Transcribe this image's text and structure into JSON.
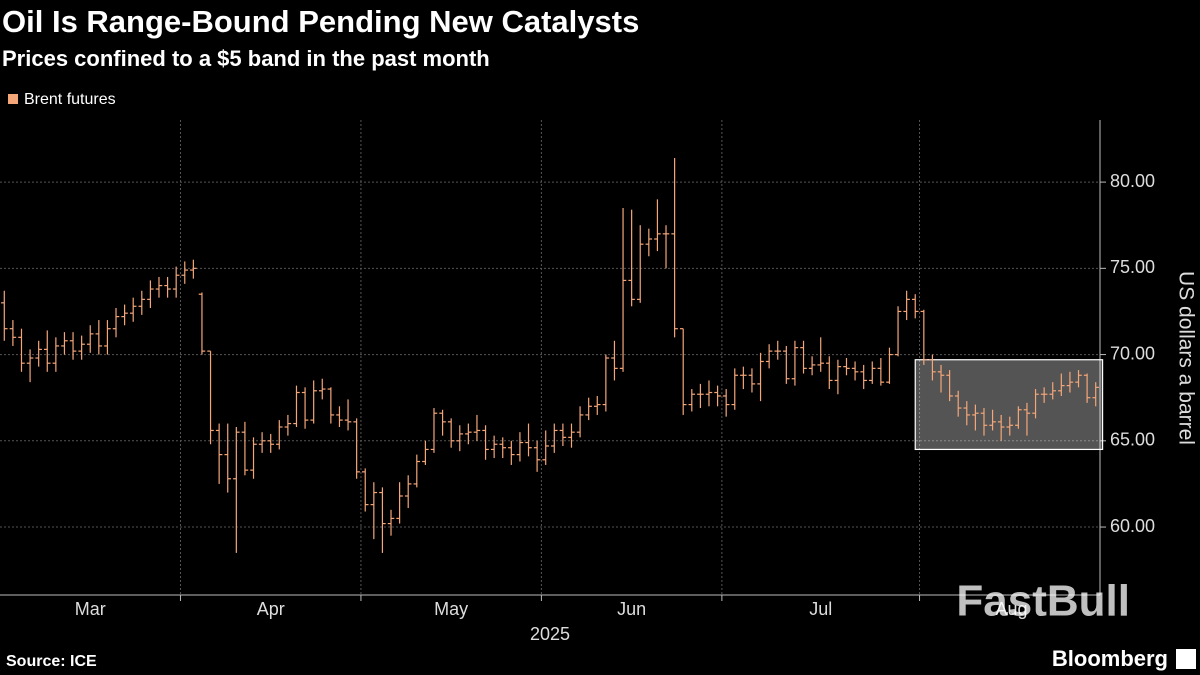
{
  "chart_data": {
    "type": "ohlc",
    "title": "Oil Is Range-Bound Pending New Catalysts",
    "subtitle": "Prices confined to a $5 band in the past month",
    "y_axis_label": "US dollars a barrel",
    "x_axis_label": "2025",
    "source": "Source: ICE",
    "brand": "Bloomberg",
    "watermark": "FastBull",
    "legend_position": "top-left",
    "grid": true,
    "ylim": [
      56.06,
      83.6
    ],
    "yticks": [
      {
        "value": 60,
        "label": "60.00"
      },
      {
        "value": 65,
        "label": "65.00"
      },
      {
        "value": 70,
        "label": "70.00"
      },
      {
        "value": 75,
        "label": "75.00"
      },
      {
        "value": 80,
        "label": "80.00"
      }
    ],
    "highlight": {
      "xlim": [
        107,
        127
      ],
      "ylim": [
        64.5,
        69.7
      ]
    },
    "categories": [
      "Mar",
      null,
      null,
      null,
      null,
      null,
      null,
      null,
      null,
      null,
      null,
      null,
      null,
      null,
      null,
      null,
      null,
      null,
      null,
      null,
      null,
      "Apr",
      null,
      null,
      null,
      null,
      null,
      null,
      null,
      null,
      null,
      null,
      null,
      null,
      null,
      null,
      null,
      null,
      null,
      null,
      null,
      null,
      "May",
      null,
      null,
      null,
      null,
      null,
      null,
      null,
      null,
      null,
      null,
      null,
      null,
      null,
      null,
      null,
      null,
      null,
      null,
      null,
      null,
      "Jun",
      null,
      null,
      null,
      null,
      null,
      null,
      null,
      null,
      null,
      null,
      null,
      null,
      null,
      null,
      null,
      null,
      null,
      null,
      null,
      null,
      "Jul",
      null,
      null,
      null,
      null,
      null,
      null,
      null,
      null,
      null,
      null,
      null,
      null,
      null,
      null,
      null,
      null,
      null,
      null,
      null,
      null,
      null,
      null,
      "Aug",
      null,
      null,
      null,
      null,
      null,
      null,
      null,
      null,
      null,
      null,
      null,
      null,
      null,
      null,
      null,
      null,
      null,
      null,
      null,
      null
    ],
    "series": [
      {
        "name": "Brent futures",
        "color": "#f4a679",
        "open": [
          73.0,
          71.5,
          71.0,
          69.5,
          69.8,
          70.3,
          69.5,
          70.5,
          70.8,
          70.2,
          70.6,
          71.2,
          70.5,
          71.5,
          72.2,
          72.4,
          72.8,
          73.2,
          73.8,
          74.0,
          73.8,
          74.6,
          74.9,
          73.5,
          70.2,
          65.6,
          64.2,
          62.8,
          65.5,
          63.3,
          64.8,
          65.0,
          64.8,
          65.8,
          66.0,
          67.8,
          66.2,
          67.9,
          68.0,
          66.5,
          66.2,
          66.1,
          63.2,
          61.3,
          62.0,
          60.2,
          60.5,
          61.8,
          62.5,
          63.8,
          64.5,
          66.6,
          66.1,
          65.0,
          65.4,
          65.5,
          65.6,
          64.5,
          64.8,
          64.6,
          64.2,
          64.9,
          64.6,
          63.9,
          64.7,
          65.6,
          65.2,
          65.5,
          66.5,
          67.0,
          67.1,
          69.8,
          69.2,
          74.3,
          73.2,
          76.4,
          76.7,
          77.0,
          77.0,
          71.5,
          67.1,
          67.7,
          67.7,
          67.8,
          67.6,
          67.1,
          68.8,
          68.8,
          68.3,
          69.6,
          70.2,
          70.2,
          68.6,
          70.4,
          69.2,
          69.4,
          69.5,
          68.5,
          69.3,
          69.2,
          69.0,
          68.5,
          69.2,
          68.4,
          70.0,
          72.5,
          73.2,
          72.5,
          69.7,
          69.0,
          68.8,
          67.6,
          66.9,
          66.5,
          66.6,
          65.9,
          66.1,
          65.8,
          65.9,
          66.8,
          66.6,
          67.7,
          67.7,
          67.9,
          68.2,
          68.4,
          68.8,
          67.5
        ],
        "high": [
          73.7,
          72.0,
          71.5,
          70.3,
          70.8,
          71.4,
          71.0,
          71.3,
          71.3,
          71.1,
          71.7,
          72.0,
          72.0,
          72.7,
          72.9,
          73.3,
          73.7,
          74.3,
          74.5,
          74.5,
          75.1,
          75.4,
          75.5,
          73.6,
          70.2,
          66.0,
          66.0,
          65.8,
          66.1,
          65.2,
          65.5,
          65.4,
          66.2,
          66.5,
          68.2,
          68.1,
          68.5,
          68.6,
          68.1,
          67.0,
          67.4,
          66.3,
          63.4,
          62.6,
          62.3,
          61.0,
          62.6,
          63.0,
          64.2,
          65.0,
          66.9,
          66.8,
          66.3,
          65.9,
          66.0,
          66.5,
          65.9,
          65.3,
          65.2,
          65.0,
          65.5,
          66.0,
          65.0,
          65.6,
          66.0,
          66.0,
          66.0,
          67.0,
          67.5,
          67.6,
          70.0,
          70.8,
          78.5,
          78.4,
          77.5,
          77.3,
          79.0,
          77.5,
          81.4,
          71.5,
          68.0,
          68.3,
          68.5,
          68.2,
          68.0,
          69.2,
          69.3,
          69.2,
          70.1,
          70.6,
          70.8,
          70.5,
          70.8,
          70.8,
          69.9,
          71.0,
          69.9,
          69.7,
          69.8,
          69.6,
          69.4,
          69.6,
          69.8,
          70.4,
          72.8,
          73.7,
          73.5,
          72.6,
          70.0,
          69.4,
          69.1,
          67.9,
          67.3,
          67.1,
          66.9,
          66.8,
          66.5,
          66.4,
          67.0,
          67.2,
          68.0,
          68.1,
          68.4,
          68.9,
          69.0,
          69.1,
          68.9,
          68.4
        ],
        "low": [
          70.8,
          70.5,
          69.0,
          68.4,
          69.3,
          69.0,
          69.0,
          70.0,
          69.7,
          69.7,
          70.1,
          70.0,
          70.0,
          71.0,
          71.7,
          71.9,
          72.3,
          72.7,
          73.3,
          73.3,
          73.3,
          74.1,
          74.4,
          70.0,
          64.8,
          62.5,
          62.0,
          58.5,
          63.0,
          62.8,
          64.3,
          64.3,
          64.5,
          65.3,
          65.8,
          65.7,
          66.0,
          67.4,
          66.0,
          65.8,
          65.6,
          62.8,
          60.9,
          59.3,
          58.5,
          59.5,
          60.2,
          61.1,
          62.3,
          63.6,
          64.3,
          65.3,
          64.6,
          64.4,
          64.8,
          65.0,
          63.9,
          64.0,
          64.0,
          63.6,
          63.8,
          64.1,
          63.2,
          63.6,
          64.3,
          64.7,
          64.6,
          65.2,
          66.2,
          66.5,
          66.7,
          68.5,
          69.0,
          72.8,
          73.0,
          75.7,
          76.0,
          75.0,
          71.0,
          66.5,
          66.7,
          66.9,
          67.0,
          67.0,
          66.4,
          66.8,
          68.0,
          67.8,
          67.3,
          69.2,
          69.7,
          68.3,
          68.2,
          68.9,
          68.8,
          69.0,
          68.0,
          67.7,
          68.8,
          68.5,
          68.0,
          68.3,
          68.2,
          68.3,
          69.9,
          72.0,
          72.1,
          69.4,
          68.5,
          67.8,
          67.3,
          66.4,
          65.9,
          65.6,
          65.3,
          65.6,
          65.0,
          65.3,
          65.7,
          65.3,
          66.3,
          67.2,
          67.4,
          67.6,
          67.8,
          68.1,
          67.2,
          67.0
        ],
        "close": [
          71.5,
          71.0,
          69.5,
          69.8,
          70.3,
          69.5,
          70.5,
          70.8,
          70.2,
          70.6,
          71.2,
          70.5,
          71.5,
          72.2,
          72.4,
          72.8,
          73.2,
          73.8,
          74.0,
          73.8,
          74.6,
          74.9,
          75.0,
          70.2,
          65.6,
          64.2,
          62.8,
          65.5,
          63.3,
          64.8,
          65.0,
          64.8,
          65.8,
          66.0,
          67.8,
          66.2,
          67.9,
          68.0,
          66.5,
          66.2,
          66.1,
          63.2,
          61.3,
          62.0,
          60.2,
          60.5,
          61.8,
          62.5,
          63.8,
          64.5,
          66.6,
          66.1,
          65.0,
          65.4,
          65.5,
          65.6,
          64.5,
          64.8,
          64.6,
          64.2,
          64.9,
          64.6,
          63.9,
          64.7,
          65.6,
          65.2,
          65.5,
          66.5,
          67.0,
          67.1,
          69.8,
          69.2,
          74.3,
          73.2,
          76.4,
          76.7,
          77.0,
          77.0,
          71.5,
          67.1,
          67.7,
          67.7,
          67.8,
          67.6,
          67.1,
          68.8,
          68.8,
          68.3,
          69.6,
          70.2,
          70.2,
          68.6,
          70.4,
          69.2,
          69.4,
          69.5,
          68.5,
          69.3,
          69.2,
          69.0,
          68.5,
          69.2,
          68.4,
          70.0,
          72.5,
          73.2,
          72.5,
          69.7,
          69.0,
          68.8,
          67.6,
          66.9,
          66.5,
          66.6,
          65.9,
          66.1,
          65.8,
          65.9,
          66.8,
          66.6,
          67.7,
          67.7,
          67.9,
          68.2,
          68.4,
          68.8,
          67.5,
          68.1
        ]
      }
    ]
  }
}
